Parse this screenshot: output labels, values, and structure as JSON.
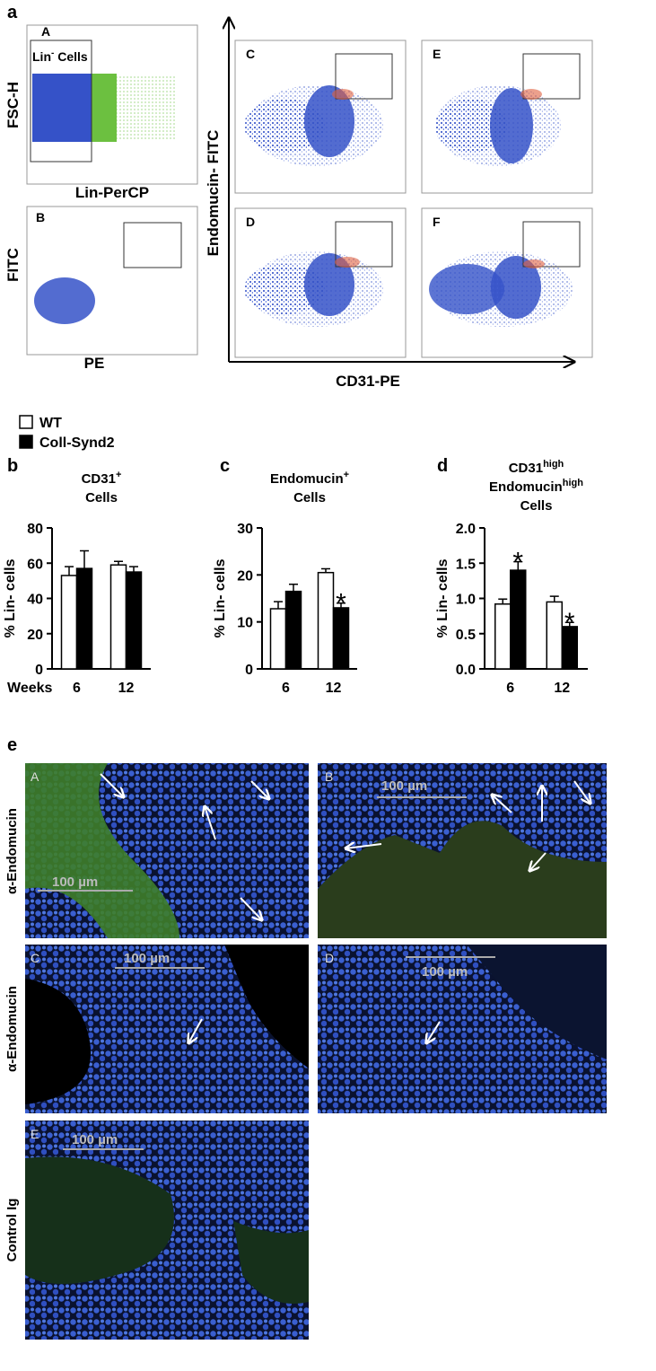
{
  "figure": {
    "panel_a": {
      "label": "a",
      "plots": [
        "A",
        "B",
        "C",
        "D",
        "E",
        "F"
      ],
      "gate_label": [
        "Lin",
        "-",
        " Cells"
      ],
      "y_label_A": "FSC-H",
      "x_label_A": "Lin-PerCP",
      "y_label_B": "FITC",
      "x_label_B": "PE",
      "y_label_main": "Endomucin- FITC",
      "x_label_main": "CD31-PE"
    },
    "panel_e": {
      "label": "e",
      "images": [
        {
          "letter": "A",
          "scale": "100 µm"
        },
        {
          "letter": "B",
          "scale": "100 µm"
        },
        {
          "letter": "C",
          "scale": "100 µm"
        },
        {
          "letter": "D",
          "scale": "100 µm"
        },
        {
          "letter": "E",
          "scale": "100 µm"
        }
      ],
      "row_labels": [
        "α-Endomucin",
        "α-Endomucin",
        "Control Ig"
      ]
    }
  },
  "chart_data": [
    {
      "type": "bar",
      "panel": "b",
      "title_lines": [
        [
          "CD31",
          "+"
        ],
        [
          "Cells"
        ]
      ],
      "y_label": "% Lin- cells",
      "x_label": "Weeks",
      "categories": [
        "6",
        "12"
      ],
      "series": [
        {
          "name": "WT",
          "color": "#ffffff",
          "values": [
            53,
            59
          ],
          "errors": [
            5,
            2
          ]
        },
        {
          "name": "Coll-Synd2",
          "color": "#000000",
          "values": [
            57,
            55
          ],
          "errors": [
            10,
            3
          ]
        }
      ],
      "ylim": [
        0,
        80
      ],
      "yticks": [
        0,
        20,
        40,
        60,
        80
      ],
      "annotations": []
    },
    {
      "type": "bar",
      "panel": "c",
      "title_lines": [
        [
          "Endomucin",
          "+"
        ],
        [
          "Cells"
        ]
      ],
      "y_label": "% Lin- cells",
      "categories": [
        "6",
        "12"
      ],
      "series": [
        {
          "name": "WT",
          "color": "#ffffff",
          "values": [
            12.8,
            20.5
          ],
          "errors": [
            1.5,
            0.8
          ]
        },
        {
          "name": "Coll-Synd2",
          "color": "#000000",
          "values": [
            16.5,
            13
          ],
          "errors": [
            1.5,
            1
          ]
        }
      ],
      "ylim": [
        0,
        30
      ],
      "yticks": [
        0,
        10,
        20,
        30
      ],
      "annotations": [
        {
          "text": "*",
          "series": 1,
          "index": 1
        }
      ]
    },
    {
      "type": "bar",
      "panel": "d",
      "title_lines": [
        [
          "CD31",
          "high"
        ],
        [
          "Endomucin",
          "high"
        ],
        [
          "Cells"
        ]
      ],
      "y_label": "% Lin- cells",
      "categories": [
        "6",
        "12"
      ],
      "series": [
        {
          "name": "WT",
          "color": "#ffffff",
          "values": [
            0.92,
            0.95
          ],
          "errors": [
            0.07,
            0.08
          ]
        },
        {
          "name": "Coll-Synd2",
          "color": "#000000",
          "values": [
            1.4,
            0.6
          ],
          "errors": [
            0.12,
            0.06
          ]
        }
      ],
      "ylim": [
        0,
        2
      ],
      "yticks": [
        {
          "value": 0,
          "label": "0.0"
        },
        {
          "value": 0.5,
          "label": "0.5"
        },
        {
          "value": 1,
          "label": "1.0"
        },
        {
          "value": 1.5,
          "label": "1.5"
        },
        {
          "value": 2,
          "label": "2.0"
        }
      ],
      "annotations": [
        {
          "text": "*",
          "series": 1,
          "index": 0
        },
        {
          "text": "*",
          "series": 1,
          "index": 1
        }
      ]
    }
  ]
}
